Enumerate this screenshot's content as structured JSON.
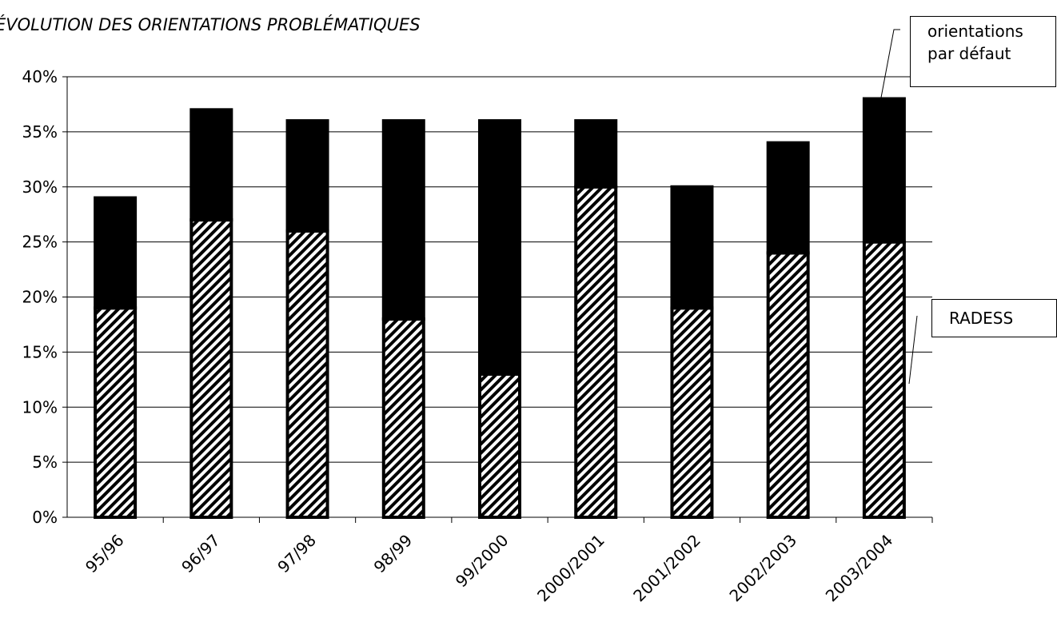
{
  "chart_data": {
    "type": "bar",
    "stacked": true,
    "title": "ÉVOLUTION DES ORIENTATIONS PROBLÉMATIQUES",
    "xlabel": "",
    "ylabel": "",
    "ylim": [
      0,
      0.4
    ],
    "ytick_values": [
      0,
      0.05,
      0.1,
      0.15,
      0.2,
      0.25,
      0.3,
      0.35,
      0.4
    ],
    "ytick_labels": [
      "0%",
      "5%",
      "10%",
      "15%",
      "20%",
      "25%",
      "30%",
      "35%",
      "40%"
    ],
    "categories": [
      "95/96",
      "96/97",
      "97/98",
      "98/99",
      "99/2000",
      "2000/2001",
      "2001/2002",
      "2002/2003",
      "2003/2004"
    ],
    "series": [
      {
        "name": "RADESS",
        "pattern": "diagonal-hatch",
        "color": "#000000",
        "values": [
          0.19,
          0.27,
          0.26,
          0.18,
          0.13,
          0.3,
          0.19,
          0.24,
          0.25
        ]
      },
      {
        "name": "orientations par défaut",
        "pattern": "solid",
        "color": "#000000",
        "values": [
          0.1,
          0.1,
          0.1,
          0.18,
          0.23,
          0.06,
          0.11,
          0.1,
          0.13
        ]
      }
    ],
    "totals": [
      0.29,
      0.37,
      0.36,
      0.36,
      0.36,
      0.36,
      0.3,
      0.34,
      0.38
    ],
    "grid": true,
    "legend": {
      "placement": "right",
      "entries": [
        {
          "line1": "orientations",
          "line2": "par défaut"
        },
        {
          "line1": "RADESS"
        }
      ]
    }
  }
}
